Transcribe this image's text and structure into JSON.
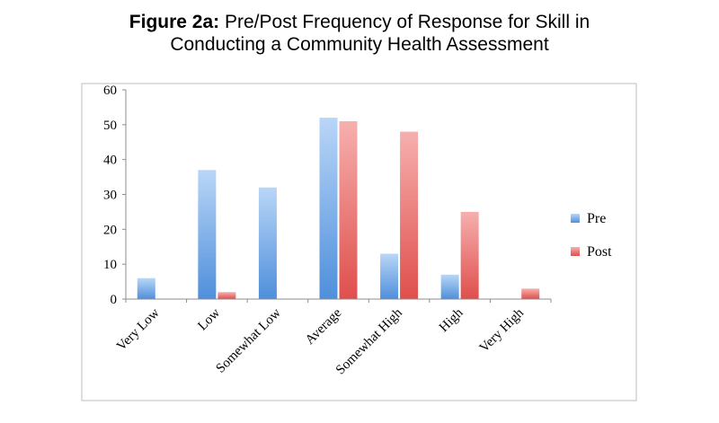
{
  "title": {
    "bold": "Figure 2a:",
    "line1": " Pre/Post Frequency of Response for Skill in",
    "line2": "Conducting a Community Health Assessment"
  },
  "chart_data": {
    "type": "bar",
    "categories": [
      "Very Low",
      "Low",
      "Somewhat Low",
      "Average",
      "Somewhat High",
      "High",
      "Very High"
    ],
    "series": [
      {
        "name": "Pre",
        "values": [
          6,
          37,
          32,
          52,
          13,
          7,
          0
        ],
        "color": "#5b9bd5"
      },
      {
        "name": "Post",
        "values": [
          0,
          2,
          0,
          51,
          48,
          25,
          3
        ],
        "color": "#e8625f"
      }
    ],
    "yticks": [
      0,
      10,
      20,
      30,
      40,
      50,
      60
    ],
    "ylim": [
      0,
      60
    ],
    "legend": "right",
    "grid": false
  }
}
